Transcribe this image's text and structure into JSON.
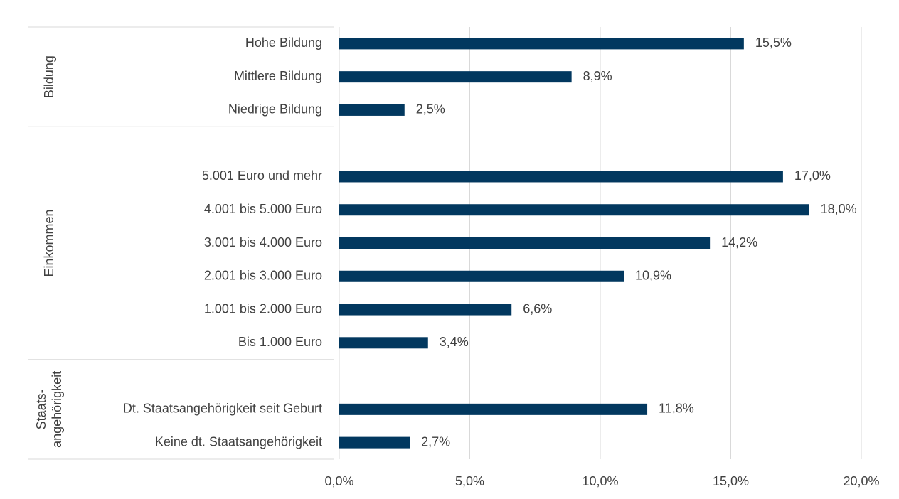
{
  "chart_data": {
    "type": "bar",
    "orientation": "horizontal",
    "categories": [
      "Hohe Bildung",
      "Mittlere Bildung",
      "Niedrige Bildung",
      null,
      "5.001 Euro und mehr",
      "4.001 bis 5.000 Euro",
      "3.001 bis 4.000 Euro",
      "2.001 bis 3.000 Euro",
      "1.001 bis 2.000 Euro",
      "Bis 1.000 Euro",
      null,
      "Dt. Staatsangehörigkeit seit Geburt",
      "Keine dt. Staatsangehörigkeit"
    ],
    "values": [
      15.5,
      8.9,
      2.5,
      null,
      17.0,
      18.0,
      14.2,
      10.9,
      6.6,
      3.4,
      null,
      11.8,
      2.7
    ],
    "value_labels": [
      "15,5%",
      "8,9%",
      "2,5%",
      null,
      "17,0%",
      "18,0%",
      "14,2%",
      "10,9%",
      "6,6%",
      "3,4%",
      null,
      "11,8%",
      "2,7%"
    ],
    "groups": [
      {
        "lines": [
          "Bildung"
        ],
        "count": 3
      },
      {
        "lines": [
          "Einkommen"
        ],
        "count": 7
      },
      {
        "lines": [
          "Staats-",
          "angehörigkeit"
        ],
        "count": 3
      }
    ],
    "color": "#02385f",
    "xlim": [
      0,
      20
    ],
    "xticks": [
      {
        "value": 0,
        "label": "0,0%"
      },
      {
        "value": 5,
        "label": "5,0%"
      },
      {
        "value": 10,
        "label": "10,0%"
      },
      {
        "value": 15,
        "label": "15,0%"
      },
      {
        "value": 20,
        "label": "20,0%"
      }
    ],
    "grid": true
  }
}
